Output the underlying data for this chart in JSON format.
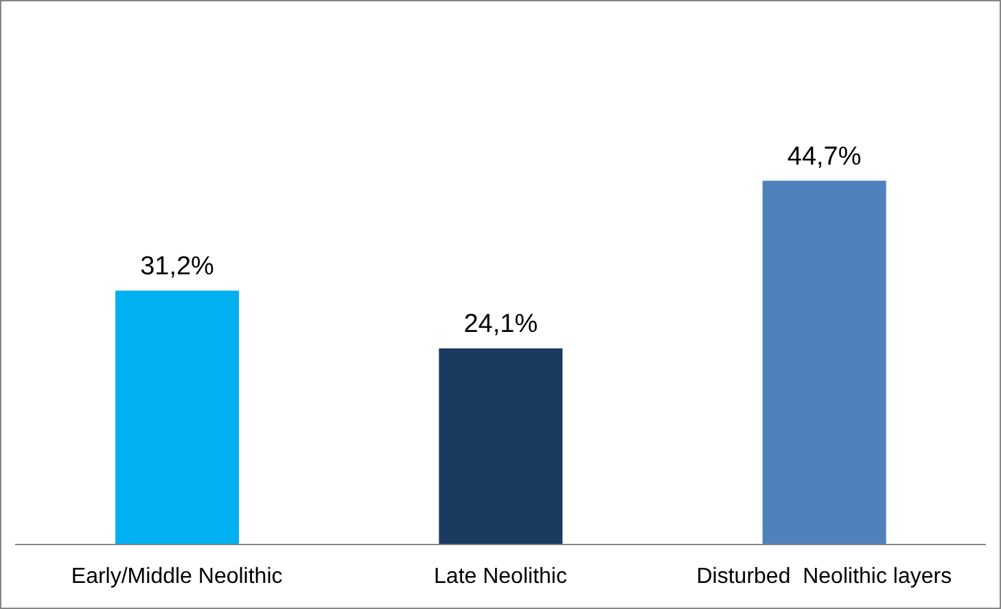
{
  "chart_data": {
    "type": "bar",
    "categories": [
      "Early/Middle Neolithic",
      "Late Neolithic",
      "Disturbed  Neolithic layers"
    ],
    "values": [
      31.2,
      24.1,
      44.7
    ],
    "colors": [
      "#00b0f0",
      "#1b3a5f",
      "#4f81bd"
    ],
    "value_labels": [
      "31,2%",
      "24,1%",
      "44,7%"
    ],
    "grid": false,
    "legend": false
  }
}
